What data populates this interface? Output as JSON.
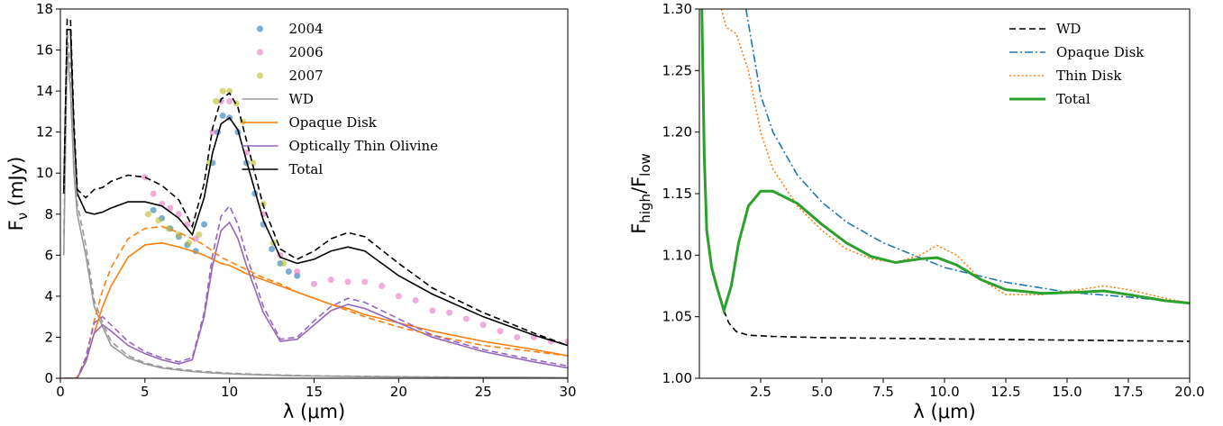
{
  "chart_data": [
    {
      "type": "line",
      "xlabel": "λ (μm)",
      "ylabel": [
        "F",
        "ν",
        " (mJy)"
      ],
      "xlim": [
        0,
        30
      ],
      "ylim": [
        0,
        18
      ],
      "xticks": [
        0,
        5,
        10,
        15,
        20,
        25,
        30
      ],
      "yticks": [
        0,
        2,
        4,
        6,
        8,
        10,
        12,
        14,
        16,
        18
      ],
      "legend": "upper center",
      "series": [
        {
          "name": "2004",
          "kind": "scatter",
          "color": "#1f77b4",
          "x": [
            5.5,
            6,
            6.5,
            7,
            7.5,
            8,
            8.5,
            9,
            9.3,
            9.6,
            10,
            10.5,
            11,
            11.5,
            12,
            12.5,
            13,
            13.5,
            14
          ],
          "values": [
            8.2,
            7.8,
            7.3,
            6.9,
            6.5,
            6.2,
            7.5,
            10.5,
            12,
            12.8,
            12.7,
            12,
            10.5,
            9,
            7.5,
            6.3,
            5.6,
            5.2,
            5.0
          ]
        },
        {
          "name": "2006",
          "kind": "scatter",
          "color": "#e377c2",
          "x": [
            5,
            5.5,
            6,
            6.5,
            7,
            7.5,
            8,
            9,
            9.5,
            10,
            11,
            12,
            13,
            14,
            15,
            16,
            17,
            18,
            19,
            20,
            21,
            22,
            23,
            24,
            25,
            26,
            27,
            28,
            29,
            30
          ],
          "values": [
            9.8,
            9,
            8.5,
            8.3,
            8.0,
            7.5,
            6.8,
            12,
            13.5,
            13.5,
            11,
            8,
            6,
            5.2,
            4.6,
            4.8,
            4.7,
            4.7,
            4.5,
            4.0,
            3.8,
            3.3,
            3.2,
            2.9,
            2.6,
            2.3,
            2.0,
            2.0,
            1.8,
            1.8
          ]
        },
        {
          "name": "2007",
          "kind": "scatter",
          "color": "#bcbd22",
          "x": [
            5.2,
            5.8,
            6.4,
            7,
            7.6,
            8.2,
            8.8,
            9.2,
            9.6,
            10,
            10.4,
            10.8,
            11.4,
            12,
            12.6,
            13.2
          ],
          "values": [
            8.0,
            7.7,
            7.3,
            7.0,
            6.6,
            7.0,
            10.5,
            13.5,
            14.0,
            14.0,
            13.4,
            12.5,
            10.5,
            8.5,
            6.6,
            5.6
          ]
        },
        {
          "name": "WD",
          "color": "#999999",
          "linestyle": "solid",
          "x": [
            0.2,
            0.4,
            0.6,
            0.8,
            1,
            1.5,
            2,
            2.5,
            3,
            4,
            5,
            6,
            7,
            7.8,
            8.5,
            9,
            9.5,
            10,
            10.5,
            11,
            12,
            13,
            14,
            15,
            16,
            17,
            18,
            20,
            22,
            25,
            28,
            30
          ],
          "values": [
            6,
            16,
            14,
            10,
            8,
            6,
            3.5,
            2.5,
            1.6,
            1.0,
            0.7,
            0.5,
            0.4,
            0.33,
            0.29,
            0.26,
            0.24,
            0.22,
            0.2,
            0.19,
            0.16,
            0.14,
            0.12,
            0.11,
            0.1,
            0.09,
            0.08,
            0.07,
            0.06,
            0.05,
            0.04,
            0.03
          ]
        },
        {
          "name": "Opaque Disk",
          "color": "#ff7f0e",
          "linestyle": "solid",
          "x": [
            0.2,
            0.4,
            0.6,
            0.8,
            1,
            1.5,
            2,
            2.5,
            3,
            4,
            5,
            6,
            7,
            7.8,
            8.5,
            9,
            9.5,
            10,
            10.5,
            11,
            12,
            13,
            14,
            15,
            16,
            17,
            18,
            20,
            22,
            25,
            28,
            30
          ],
          "values": [
            0,
            0,
            0,
            0,
            0.05,
            0.8,
            2.2,
            3.5,
            4.5,
            5.9,
            6.5,
            6.6,
            6.4,
            6.2,
            6.0,
            5.8,
            5.6,
            5.5,
            5.3,
            5.1,
            4.8,
            4.5,
            4.2,
            3.9,
            3.6,
            3.4,
            3.1,
            2.7,
            2.3,
            1.8,
            1.4,
            1.1
          ]
        },
        {
          "name": "Optically Thin Olivine",
          "color": "#9467bd",
          "linestyle": "solid",
          "x": [
            0.2,
            0.4,
            0.6,
            0.8,
            1,
            1.5,
            2,
            2.5,
            3,
            4,
            5,
            6,
            7,
            7.8,
            8.5,
            9,
            9.5,
            10,
            10.5,
            11,
            12,
            13,
            14,
            15,
            16,
            17,
            18,
            20,
            22,
            25,
            28,
            30
          ],
          "values": [
            0,
            0,
            0,
            0,
            0,
            0.8,
            2.2,
            2.6,
            2.3,
            1.6,
            1.2,
            0.9,
            0.7,
            0.9,
            3,
            5.5,
            7.2,
            7.6,
            6.8,
            5.5,
            3.2,
            1.8,
            1.9,
            2.6,
            3.3,
            3.6,
            3.4,
            2.7,
            2.0,
            1.3,
            0.8,
            0.5
          ]
        },
        {
          "name": "Total",
          "color": "#000000",
          "linestyle": "solid",
          "x": [
            0.2,
            0.4,
            0.6,
            0.8,
            1,
            1.5,
            2,
            2.5,
            3,
            4,
            5,
            6,
            7,
            7.8,
            8.5,
            9,
            9.5,
            10,
            10.5,
            11,
            12,
            13,
            14,
            15,
            16,
            17,
            18,
            20,
            22,
            25,
            28,
            30
          ],
          "values": [
            9,
            17,
            17,
            12,
            9,
            8.1,
            8.0,
            8.1,
            8.3,
            8.6,
            8.6,
            8.4,
            7.8,
            7.0,
            8.8,
            11,
            12.4,
            12.7,
            12.1,
            10.6,
            7.7,
            5.9,
            5.6,
            5.8,
            6.2,
            6.4,
            6.2,
            5.0,
            4.1,
            3.0,
            2.1,
            1.6
          ]
        },
        {
          "color": "#999999",
          "linestyle": "dashed",
          "x": [
            0.2,
            0.4,
            0.6,
            0.8,
            1,
            1.5,
            2,
            2.5,
            3,
            4,
            5,
            6,
            7,
            8,
            10,
            12,
            15,
            20,
            25,
            30
          ],
          "values": [
            7,
            17,
            15,
            11,
            8.5,
            6.5,
            3.8,
            2.7,
            1.8,
            1.1,
            0.75,
            0.55,
            0.45,
            0.36,
            0.25,
            0.18,
            0.12,
            0.08,
            0.05,
            0.03
          ]
        },
        {
          "color": "#ff7f0e",
          "linestyle": "dashed",
          "x": [
            0.2,
            0.4,
            0.6,
            0.8,
            1,
            1.5,
            2,
            2.5,
            3,
            4,
            5,
            6,
            7,
            7.8,
            8.5,
            9,
            9.5,
            10,
            10.5,
            11,
            12,
            13,
            14,
            15,
            16,
            17,
            18,
            20,
            22,
            25,
            28,
            30
          ],
          "values": [
            0,
            0,
            0,
            0,
            0.05,
            1.0,
            2.8,
            4.3,
            5.4,
            6.8,
            7.3,
            7.4,
            7.1,
            6.8,
            6.5,
            6.2,
            5.9,
            5.7,
            5.5,
            5.3,
            4.9,
            4.6,
            4.2,
            3.9,
            3.6,
            3.3,
            3.0,
            2.5,
            2.1,
            1.6,
            1.3,
            1.1
          ]
        },
        {
          "color": "#9467bd",
          "linestyle": "dashed",
          "x": [
            0.2,
            0.4,
            0.6,
            0.8,
            1,
            1.5,
            2,
            2.5,
            3,
            4,
            5,
            6,
            7,
            7.8,
            8.5,
            9,
            9.5,
            10,
            10.5,
            11,
            12,
            13,
            14,
            15,
            16,
            17,
            18,
            20,
            22,
            25,
            28,
            30
          ],
          "values": [
            0,
            0,
            0,
            0,
            0,
            1.0,
            2.7,
            3.0,
            2.6,
            1.8,
            1.3,
            1.0,
            0.8,
            1.0,
            3.2,
            6.0,
            7.9,
            8.4,
            7.5,
            6.0,
            3.5,
            1.9,
            2.0,
            2.8,
            3.5,
            3.9,
            3.7,
            2.9,
            2.1,
            1.4,
            0.9,
            0.6
          ]
        },
        {
          "color": "#000000",
          "linestyle": "dashed",
          "x": [
            0.2,
            0.4,
            0.6,
            0.8,
            1,
            1.5,
            2,
            2.5,
            3,
            4,
            5,
            6,
            7,
            7.8,
            8.5,
            9,
            9.5,
            10,
            10.5,
            11,
            12,
            13,
            14,
            15,
            16,
            17,
            18,
            20,
            22,
            25,
            28,
            30
          ],
          "values": [
            9,
            17.5,
            17.5,
            12.5,
            9.2,
            8.8,
            9.2,
            9.3,
            9.6,
            9.9,
            9.8,
            9.4,
            8.7,
            7.4,
            9.5,
            12.2,
            13.6,
            13.9,
            13.2,
            11.6,
            8.4,
            6.3,
            5.8,
            6.2,
            6.8,
            7.1,
            6.9,
            5.6,
            4.4,
            3.2,
            2.2,
            1.6
          ]
        }
      ]
    },
    {
      "type": "line",
      "xlabel": "λ (μm)",
      "ylabel": [
        "F",
        "high",
        "/F",
        "low"
      ],
      "xlim": [
        0,
        20
      ],
      "ylim": [
        1,
        1.3
      ],
      "xticks": [
        2.5,
        {
          "value": 5,
          "label": "5.0"
        },
        7.5,
        {
          "value": 10,
          "label": "10.0"
        },
        12.5,
        {
          "value": 15,
          "label": "15.0"
        },
        17.5,
        {
          "value": 20,
          "label": "20.0"
        }
      ],
      "yticks": [
        {
          "value": 1,
          "label": "1.00"
        },
        1.05,
        {
          "value": 1.1,
          "label": "1.10"
        },
        1.15,
        {
          "value": 1.2,
          "label": "1.20"
        },
        1.25,
        {
          "value": 1.3,
          "label": "1.30"
        }
      ],
      "legend": "upper right",
      "series": [
        {
          "name": "WD",
          "color": "#000000",
          "linestyle": "dashed",
          "x": [
            1.0,
            1.2,
            1.5,
            2,
            3,
            5,
            10,
            15,
            20
          ],
          "values": [
            1.055,
            1.045,
            1.038,
            1.035,
            1.034,
            1.033,
            1.032,
            1.031,
            1.03
          ]
        },
        {
          "name": "Opaque Disk",
          "color": "#1f77b4",
          "linestyle": "dashdot",
          "x": [
            1.9,
            2.5,
            3,
            4,
            5,
            6,
            7.5,
            10,
            12.5,
            15,
            17.5,
            20
          ],
          "values": [
            1.3,
            1.23,
            1.2,
            1.165,
            1.143,
            1.127,
            1.11,
            1.09,
            1.078,
            1.07,
            1.066,
            1.061
          ]
        },
        {
          "name": "Thin Disk",
          "color": "#ff7f0e",
          "linestyle": "dotted",
          "x": [
            0.9,
            1.1,
            1.5,
            2,
            2.5,
            3,
            4,
            5,
            6,
            7,
            8,
            9,
            9.7,
            10.5,
            11.5,
            12.5,
            14,
            15.5,
            16.5,
            17.5,
            19,
            20
          ],
          "values": [
            1.3,
            1.285,
            1.28,
            1.25,
            1.2,
            1.17,
            1.14,
            1.12,
            1.105,
            1.097,
            1.094,
            1.1,
            1.108,
            1.1,
            1.08,
            1.068,
            1.068,
            1.072,
            1.075,
            1.072,
            1.065,
            1.061
          ]
        },
        {
          "name": "Total",
          "color": "#2ca02c",
          "linestyle": "solid",
          "width": 3,
          "x": [
            0.1,
            0.2,
            0.3,
            0.5,
            0.7,
            1,
            1.3,
            1.6,
            2,
            2.5,
            3,
            4,
            5,
            6,
            7,
            8,
            9,
            9.7,
            10.5,
            11.5,
            12.5,
            14,
            15.5,
            16.5,
            17.5,
            19,
            20
          ],
          "values": [
            1.3,
            1.18,
            1.12,
            1.09,
            1.075,
            1.055,
            1.075,
            1.11,
            1.14,
            1.152,
            1.152,
            1.142,
            1.125,
            1.11,
            1.099,
            1.094,
            1.097,
            1.098,
            1.092,
            1.08,
            1.072,
            1.069,
            1.07,
            1.071,
            1.068,
            1.063,
            1.061
          ]
        }
      ]
    }
  ]
}
